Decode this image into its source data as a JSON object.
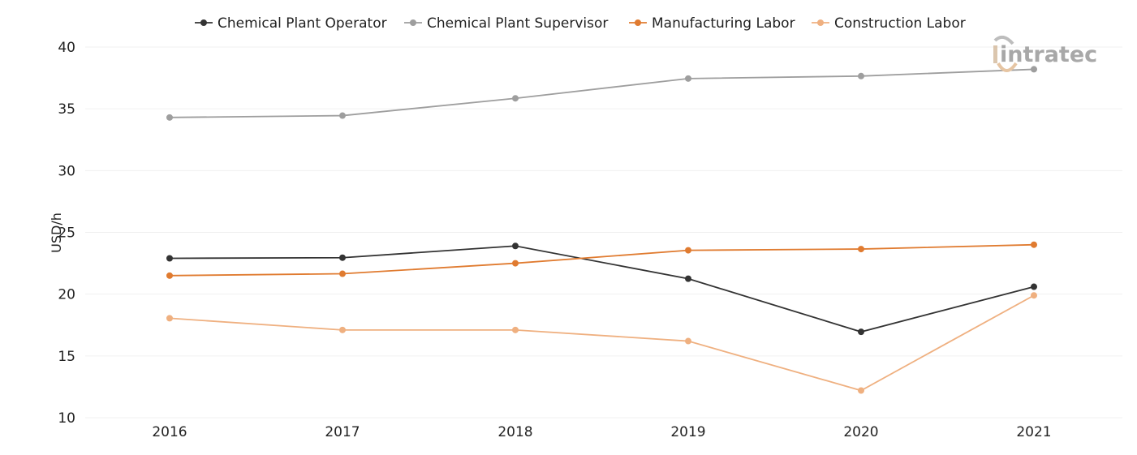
{
  "chart_data": {
    "type": "line",
    "title": "",
    "xlabel": "",
    "ylabel": "USD/h",
    "categories": [
      "2016",
      "2017",
      "2018",
      "2019",
      "2020",
      "2021"
    ],
    "ylim": [
      10,
      40
    ],
    "yticks": [
      "10",
      "15",
      "20",
      "25",
      "30",
      "35",
      "40"
    ],
    "grid": "horizontal",
    "legend_position": "top",
    "series": [
      {
        "name": "Chemical Plant Operator",
        "color": "#333333",
        "values": [
          22.9,
          22.95,
          23.9,
          21.25,
          16.95,
          20.6
        ]
      },
      {
        "name": "Chemical Plant Supervisor",
        "color": "#9e9e9e",
        "values": [
          34.3,
          34.45,
          35.85,
          37.45,
          37.65,
          38.2
        ]
      },
      {
        "name": "Manufacturing Labor",
        "color": "#e07b30",
        "values": [
          21.5,
          21.65,
          22.5,
          23.55,
          23.65,
          24.0
        ]
      },
      {
        "name": "Construction Labor",
        "color": "#efb080",
        "values": [
          18.05,
          17.1,
          17.1,
          16.2,
          12.2,
          19.9
        ]
      }
    ]
  },
  "logo": {
    "text": "intratec"
  }
}
